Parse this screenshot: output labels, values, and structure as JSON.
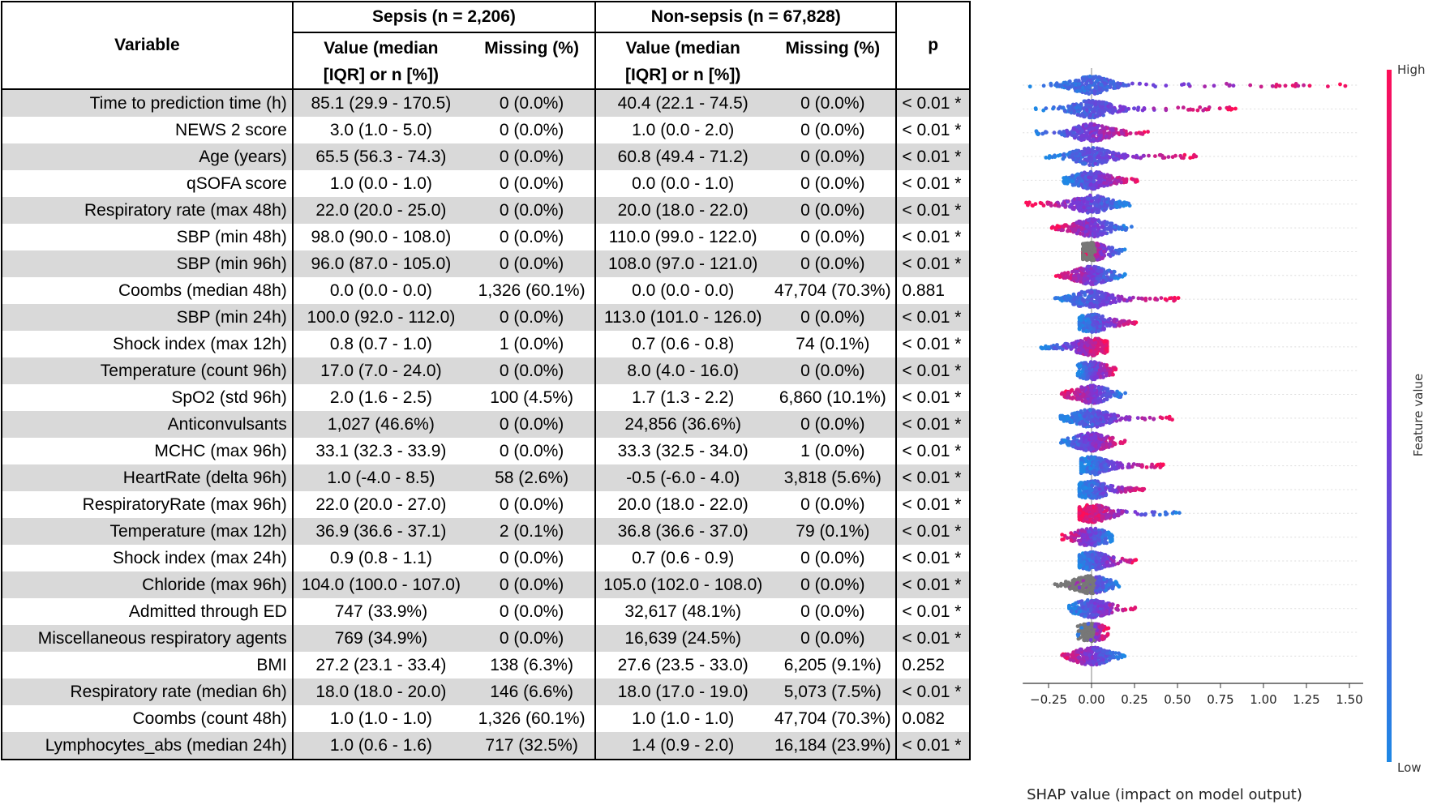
{
  "table": {
    "header": {
      "variable": "Variable",
      "sepsis_group": "Sepsis (n = 2,206)",
      "nonsepsis_group": "Non-sepsis (n = 67,828)",
      "value_line1": "Value (median",
      "value_line2": "[IQR] or n [%])",
      "missing": "Missing (%)",
      "p": "p"
    },
    "rows": [
      {
        "variable": "Time to prediction time (h)",
        "sepsis_value": "85.1 (29.9 - 170.5)",
        "sepsis_missing": "0 (0.0%)",
        "nonsepsis_value": "40.4 (22.1 - 74.5)",
        "nonsepsis_missing": "0 (0.0%)",
        "p": "< 0.01  *"
      },
      {
        "variable": "NEWS 2 score",
        "sepsis_value": "3.0 (1.0 - 5.0)",
        "sepsis_missing": "0 (0.0%)",
        "nonsepsis_value": "1.0 (0.0 - 2.0)",
        "nonsepsis_missing": "0 (0.0%)",
        "p": "< 0.01  *"
      },
      {
        "variable": "Age (years)",
        "sepsis_value": "65.5 (56.3 - 74.3)",
        "sepsis_missing": "0 (0.0%)",
        "nonsepsis_value": "60.8 (49.4 - 71.2)",
        "nonsepsis_missing": "0 (0.0%)",
        "p": "< 0.01  *"
      },
      {
        "variable": "qSOFA score",
        "sepsis_value": "1.0 (0.0 - 1.0)",
        "sepsis_missing": "0 (0.0%)",
        "nonsepsis_value": "0.0 (0.0 - 1.0)",
        "nonsepsis_missing": "0 (0.0%)",
        "p": "< 0.01  *"
      },
      {
        "variable": "Respiratory rate (max 48h)",
        "sepsis_value": "22.0 (20.0 - 25.0)",
        "sepsis_missing": "0 (0.0%)",
        "nonsepsis_value": "20.0 (18.0 - 22.0)",
        "nonsepsis_missing": "0 (0.0%)",
        "p": "< 0.01  *"
      },
      {
        "variable": "SBP (min 48h)",
        "sepsis_value": "98.0 (90.0 - 108.0)",
        "sepsis_missing": "0 (0.0%)",
        "nonsepsis_value": "110.0 (99.0 - 122.0)",
        "nonsepsis_missing": "0 (0.0%)",
        "p": "< 0.01  *"
      },
      {
        "variable": "SBP (min 96h)",
        "sepsis_value": "96.0 (87.0 - 105.0)",
        "sepsis_missing": "0 (0.0%)",
        "nonsepsis_value": "108.0 (97.0 - 121.0)",
        "nonsepsis_missing": "0 (0.0%)",
        "p": "< 0.01  *"
      },
      {
        "variable": "Coombs (median 48h)",
        "sepsis_value": "0.0 (0.0 - 0.0)",
        "sepsis_missing": "1,326 (60.1%)",
        "nonsepsis_value": "0.0 (0.0 - 0.0)",
        "nonsepsis_missing": "47,704 (70.3%)",
        "p": "0.881"
      },
      {
        "variable": "SBP (min 24h)",
        "sepsis_value": "100.0 (92.0 - 112.0)",
        "sepsis_missing": "0 (0.0%)",
        "nonsepsis_value": "113.0 (101.0 - 126.0)",
        "nonsepsis_missing": "0 (0.0%)",
        "p": "< 0.01  *"
      },
      {
        "variable": "Shock index (max 12h)",
        "sepsis_value": "0.8 (0.7 - 1.0)",
        "sepsis_missing": "1 (0.0%)",
        "nonsepsis_value": "0.7 (0.6 - 0.8)",
        "nonsepsis_missing": "74 (0.1%)",
        "p": "< 0.01  *"
      },
      {
        "variable": "Temperature (count 96h)",
        "sepsis_value": "17.0 (7.0 - 24.0)",
        "sepsis_missing": "0 (0.0%)",
        "nonsepsis_value": "8.0 (4.0 - 16.0)",
        "nonsepsis_missing": "0 (0.0%)",
        "p": "< 0.01  *"
      },
      {
        "variable": "SpO2 (std 96h)",
        "sepsis_value": "2.0 (1.6 - 2.5)",
        "sepsis_missing": "100 (4.5%)",
        "nonsepsis_value": "1.7 (1.3 - 2.2)",
        "nonsepsis_missing": "6,860 (10.1%)",
        "p": "< 0.01  *"
      },
      {
        "variable": "Anticonvulsants",
        "sepsis_value": "1,027 (46.6%)",
        "sepsis_missing": "0 (0.0%)",
        "nonsepsis_value": "24,856 (36.6%)",
        "nonsepsis_missing": "0 (0.0%)",
        "p": "< 0.01  *"
      },
      {
        "variable": "MCHC (max 96h)",
        "sepsis_value": "33.1 (32.3 - 33.9)",
        "sepsis_missing": "0 (0.0%)",
        "nonsepsis_value": "33.3 (32.5 - 34.0)",
        "nonsepsis_missing": "1 (0.0%)",
        "p": "< 0.01  *"
      },
      {
        "variable": "HeartRate (delta 96h)",
        "sepsis_value": "1.0 (-4.0 - 8.5)",
        "sepsis_missing": "58 (2.6%)",
        "nonsepsis_value": "-0.5 (-6.0 - 4.0)",
        "nonsepsis_missing": "3,818 (5.6%)",
        "p": "< 0.01  *"
      },
      {
        "variable": "RespiratoryRate (max 96h)",
        "sepsis_value": "22.0 (20.0 - 27.0)",
        "sepsis_missing": "0 (0.0%)",
        "nonsepsis_value": "20.0 (18.0 - 22.0)",
        "nonsepsis_missing": "0 (0.0%)",
        "p": "< 0.01  *"
      },
      {
        "variable": "Temperature (max 12h)",
        "sepsis_value": "36.9 (36.6 - 37.1)",
        "sepsis_missing": "2 (0.1%)",
        "nonsepsis_value": "36.8 (36.6 - 37.0)",
        "nonsepsis_missing": "79 (0.1%)",
        "p": "< 0.01  *"
      },
      {
        "variable": "Shock index (max 24h)",
        "sepsis_value": "0.9 (0.8 - 1.1)",
        "sepsis_missing": "0 (0.0%)",
        "nonsepsis_value": "0.7 (0.6 - 0.9)",
        "nonsepsis_missing": "0 (0.0%)",
        "p": "< 0.01  *"
      },
      {
        "variable": "Chloride (max 96h)",
        "sepsis_value": "104.0 (100.0 - 107.0)",
        "sepsis_missing": "0 (0.0%)",
        "nonsepsis_value": "105.0 (102.0 - 108.0)",
        "nonsepsis_missing": "0 (0.0%)",
        "p": "< 0.01  *"
      },
      {
        "variable": "Admitted through ED",
        "sepsis_value": "747 (33.9%)",
        "sepsis_missing": "0 (0.0%)",
        "nonsepsis_value": "32,617 (48.1%)",
        "nonsepsis_missing": "0 (0.0%)",
        "p": "< 0.01  *"
      },
      {
        "variable": "Miscellaneous respiratory agents",
        "sepsis_value": "769 (34.9%)",
        "sepsis_missing": "0 (0.0%)",
        "nonsepsis_value": "16,639 (24.5%)",
        "nonsepsis_missing": "0 (0.0%)",
        "p": "< 0.01  *"
      },
      {
        "variable": "BMI",
        "sepsis_value": "27.2 (23.1 - 33.4)",
        "sepsis_missing": "138 (6.3%)",
        "nonsepsis_value": "27.6 (23.5 - 33.0)",
        "nonsepsis_missing": "6,205 (9.1%)",
        "p": "0.252"
      },
      {
        "variable": "Respiratory rate (median 6h)",
        "sepsis_value": "18.0 (18.0 - 20.0)",
        "sepsis_missing": "146 (6.6%)",
        "nonsepsis_value": "18.0 (17.0 - 19.0)",
        "nonsepsis_missing": "5,073 (7.5%)",
        "p": "< 0.01  *"
      },
      {
        "variable": "Coombs (count 48h)",
        "sepsis_value": "1.0 (1.0 - 1.0)",
        "sepsis_missing": "1,326 (60.1%)",
        "nonsepsis_value": "1.0 (1.0 - 1.0)",
        "nonsepsis_missing": "47,704 (70.3%)",
        "p": "0.082"
      },
      {
        "variable": "Lymphocytes_abs (median 24h)",
        "sepsis_value": "1.0 (0.6 - 1.6)",
        "sepsis_missing": "717 (32.5%)",
        "nonsepsis_value": "1.4 (0.9 - 2.0)",
        "nonsepsis_missing": "16,184 (23.9%)",
        "p": "< 0.01  *"
      }
    ]
  },
  "chart_data": {
    "type": "scatter",
    "subtype": "shap-beeswarm",
    "xlabel": "SHAP value (impact on model output)",
    "xlim": [
      -0.4,
      1.58
    ],
    "xticks": [
      -0.25,
      0.0,
      0.25,
      0.5,
      0.75,
      1.0,
      1.25,
      1.5
    ],
    "xtick_labels": [
      "−0.25",
      "0.00",
      "0.25",
      "0.50",
      "0.75",
      "1.00",
      "1.25",
      "1.50"
    ],
    "colorbar": {
      "label": "Feature value",
      "high": "High",
      "low": "Low",
      "colors": [
        "#1e88e5",
        "#7b36d6",
        "#ff0d57"
      ]
    },
    "missing_color": "#777777",
    "series": [
      {
        "feature": "Time to prediction time (h)",
        "min": -0.38,
        "max": 1.48,
        "low_end": "left",
        "has_missing": false
      },
      {
        "feature": "NEWS 2 score",
        "min": -0.33,
        "max": 0.85,
        "low_end": "left",
        "has_missing": false
      },
      {
        "feature": "Age (years)",
        "min": -0.35,
        "max": 0.33,
        "low_end": "left",
        "has_missing": false
      },
      {
        "feature": "qSOFA score",
        "min": -0.27,
        "max": 0.63,
        "low_end": "left",
        "has_missing": false
      },
      {
        "feature": "Respiratory rate (max 48h)",
        "min": -0.17,
        "max": 0.27,
        "low_end": "left",
        "has_missing": false
      },
      {
        "feature": "SBP (min 48h)",
        "min": -0.38,
        "max": 0.23,
        "low_end": "right",
        "has_missing": false
      },
      {
        "feature": "SBP (min 96h)",
        "min": -0.25,
        "max": 0.25,
        "low_end": "right",
        "has_missing": false
      },
      {
        "feature": "Coombs (median 48h)",
        "min": -0.05,
        "max": 0.2,
        "low_end": "right",
        "has_missing": true
      },
      {
        "feature": "SBP (min 24h)",
        "min": -0.22,
        "max": 0.2,
        "low_end": "right",
        "has_missing": false
      },
      {
        "feature": "Shock index (max 12h)",
        "min": -0.23,
        "max": 0.51,
        "low_end": "left",
        "has_missing": false
      },
      {
        "feature": "Temperature (count 96h)",
        "min": -0.07,
        "max": 0.27,
        "low_end": "left",
        "has_missing": false
      },
      {
        "feature": "SpO2 (std 96h)",
        "min": -0.3,
        "max": 0.09,
        "low_end": "left",
        "has_missing": false
      },
      {
        "feature": "Anticonvulsants",
        "min": -0.08,
        "max": 0.15,
        "low_end": "left",
        "has_missing": false
      },
      {
        "feature": "MCHC (max 96h)",
        "min": -0.19,
        "max": 0.21,
        "low_end": "right",
        "has_missing": false
      },
      {
        "feature": "HeartRate (delta 96h)",
        "min": -0.18,
        "max": 0.5,
        "low_end": "left",
        "has_missing": false
      },
      {
        "feature": "RespiratoryRate (max 96h)",
        "min": -0.19,
        "max": 0.2,
        "low_end": "left",
        "has_missing": false
      },
      {
        "feature": "Temperature (max 12h)",
        "min": -0.06,
        "max": 0.42,
        "low_end": "left",
        "has_missing": false
      },
      {
        "feature": "Shock index (max 24h)",
        "min": -0.07,
        "max": 0.32,
        "low_end": "left",
        "has_missing": false
      },
      {
        "feature": "Chloride (max 96h)",
        "min": -0.07,
        "max": 0.53,
        "low_end": "right",
        "has_missing": false
      },
      {
        "feature": "Admitted through ED",
        "min": -0.18,
        "max": 0.12,
        "low_end": "right",
        "has_missing": false
      },
      {
        "feature": "Miscellaneous respiratory agents",
        "min": -0.07,
        "max": 0.27,
        "low_end": "left",
        "has_missing": false
      },
      {
        "feature": "BMI",
        "min": -0.23,
        "max": 0.16,
        "low_end": "right",
        "has_missing": true
      },
      {
        "feature": "Respiratory rate (median 6h)",
        "min": -0.13,
        "max": 0.26,
        "low_end": "left",
        "has_missing": false
      },
      {
        "feature": "Coombs (count 48h)",
        "min": -0.08,
        "max": 0.1,
        "low_end": "left",
        "has_missing": true
      },
      {
        "feature": "Lymphocytes_abs (median 24h)",
        "min": -0.2,
        "max": 0.2,
        "low_end": "right",
        "has_missing": false
      }
    ]
  }
}
